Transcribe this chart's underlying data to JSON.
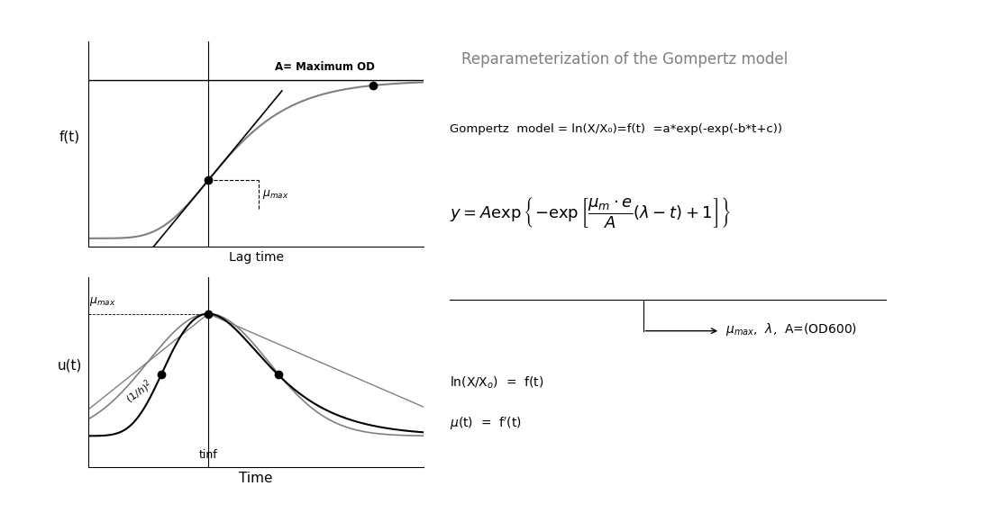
{
  "background_color": "#ffffff",
  "border_color": "#cccccc",
  "fig_width": 10.93,
  "fig_height": 5.7,
  "title_text": "Reparameterization of the Gompertz model",
  "gompertz_line1": "Gompertz  model = ln(X/X₀)=f(t)  =a*exp(-exp(-b*t+c))",
  "top_plot_ylabel": "f(t)",
  "bottom_plot_ylabel": "u(t)",
  "bottom_xlabel": "Time",
  "top_xlabel": "Lag time",
  "label_A_max": "A= Maximum OD",
  "label_mu_max_top": "$\\mu_{max}$",
  "label_mu_max_bottom": "$\\mu_{max}$",
  "label_1h2": "$(1/h)^2$",
  "label_tinf": "tinf"
}
